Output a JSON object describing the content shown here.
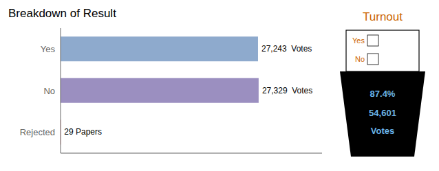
{
  "chart_data": {
    "type": "bar",
    "orientation": "horizontal",
    "title": "Breakdown of Result",
    "categories": [
      "Yes",
      "No",
      "Rejected"
    ],
    "values": [
      27243,
      27329,
      29
    ],
    "value_labels": [
      "27,243  Votes",
      "27,329  Votes",
      "29 Papers"
    ],
    "colors": [
      "#8eaacd",
      "#9b8fc0",
      "#cc0000"
    ],
    "data_labels": true,
    "xlim": [
      0,
      36074.28
    ],
    "xticks": [],
    "tick_labels": "y",
    "grid": false,
    "annotations": [
      {
        "text": "Turnout",
        "color": "#cc6600"
      },
      {
        "text": "Yes",
        "color": "#cc6600"
      },
      {
        "text": "No",
        "color": "#cc6600"
      },
      {
        "text": "87.4%",
        "color": "#6ab4e8"
      },
      {
        "text": "54,601",
        "color": "#6ab4e8"
      },
      {
        "text": "Votes",
        "color": "#6ab4e8"
      }
    ]
  }
}
